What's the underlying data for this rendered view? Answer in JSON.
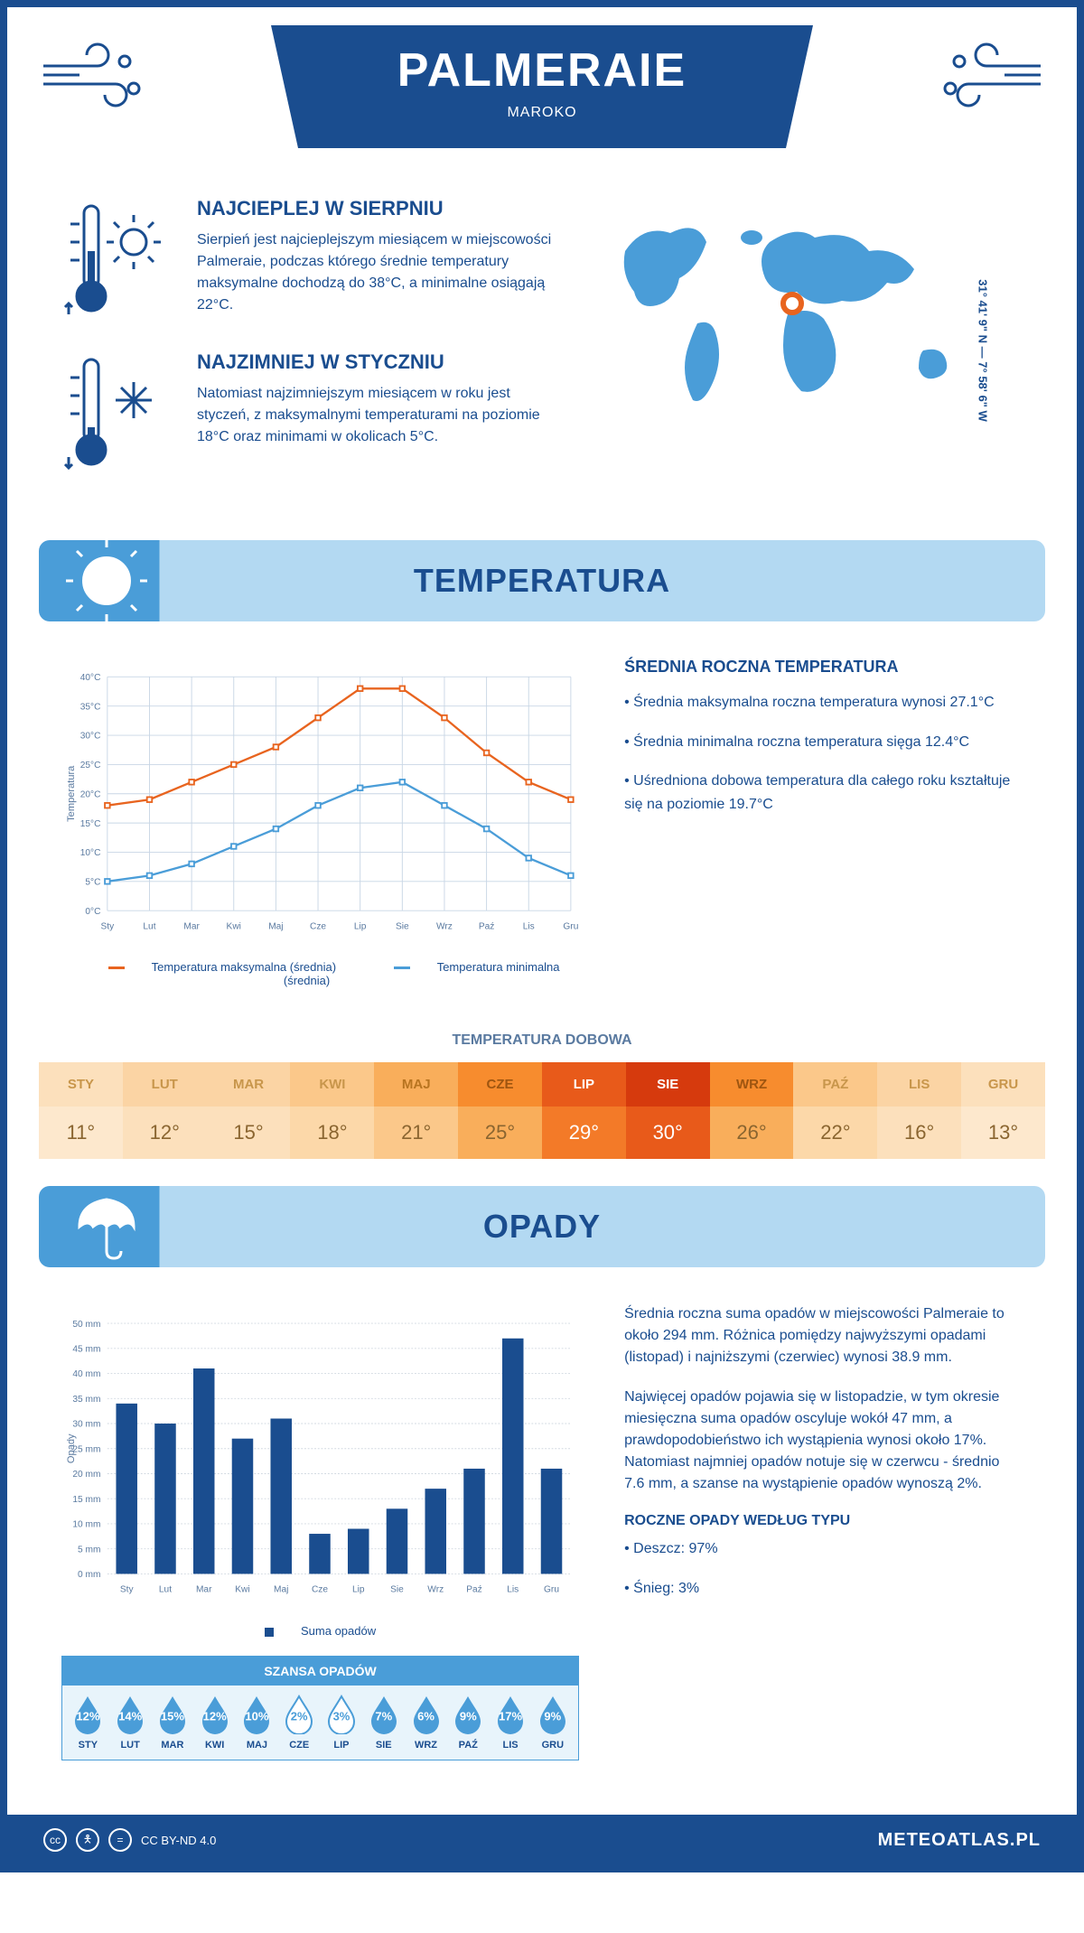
{
  "header": {
    "city": "PALMERAIE",
    "country": "MAROKO",
    "coords": "31° 41' 9\" N — 7° 58' 6\" W"
  },
  "intro": {
    "warm": {
      "title": "NAJCIEPLEJ W SIERPNIU",
      "text": "Sierpień jest najcieplejszym miesiącem w miejscowości Palmeraie, podczas którego średnie temperatury maksymalne dochodzą do 38°C, a minimalne osiągają 22°C."
    },
    "cold": {
      "title": "NAJZIMNIEJ W STYCZNIU",
      "text": "Natomiast najzimniejszym miesiącem w roku jest styczeń, z maksymalnymi temperaturami na poziomie 18°C oraz minimami w okolicach 5°C."
    }
  },
  "temp_section": {
    "title": "TEMPERATURA",
    "info_title": "ŚREDNIA ROCZNA TEMPERATURA",
    "bullets": [
      "• Średnia maksymalna roczna temperatura wynosi 27.1°C",
      "• Średnia minimalna roczna temperatura sięga 12.4°C",
      "• Uśredniona dobowa temperatura dla całego roku kształtuje się na poziomie 19.7°C"
    ],
    "daily_title": "TEMPERATURA DOBOWA",
    "chart": {
      "months": [
        "Sty",
        "Lut",
        "Mar",
        "Kwi",
        "Maj",
        "Cze",
        "Lip",
        "Sie",
        "Wrz",
        "Paź",
        "Lis",
        "Gru"
      ],
      "max_values": [
        18,
        19,
        22,
        25,
        28,
        33,
        38,
        38,
        33,
        27,
        22,
        19
      ],
      "min_values": [
        5,
        6,
        8,
        11,
        14,
        18,
        21,
        22,
        18,
        14,
        9,
        6
      ],
      "max_color": "#e8641f",
      "min_color": "#4a9dd8",
      "grid_color": "#c8d6e5",
      "ylim": [
        0,
        40
      ],
      "ytick_step": 5,
      "ylabel": "Temperatura",
      "legend_max": "Temperatura maksymalna (średnia)",
      "legend_min": "Temperatura minimalna (średnia)"
    },
    "daily": {
      "months": [
        "STY",
        "LUT",
        "MAR",
        "KWI",
        "MAJ",
        "CZE",
        "LIP",
        "SIE",
        "WRZ",
        "PAŹ",
        "LIS",
        "GRU"
      ],
      "values": [
        "11°",
        "12°",
        "15°",
        "18°",
        "21°",
        "25°",
        "29°",
        "30°",
        "26°",
        "22°",
        "16°",
        "13°"
      ],
      "bg_top": [
        "#fce0bc",
        "#fbd4a4",
        "#fbd4a4",
        "#fbc88a",
        "#f9ae5b",
        "#f78c2e",
        "#e85a1a",
        "#d63a0d",
        "#f78c2e",
        "#fbc88a",
        "#fbd4a4",
        "#fce0bc"
      ],
      "bg_bot": [
        "#fde8cd",
        "#fce0bc",
        "#fce0bc",
        "#fcd8a9",
        "#fbc88a",
        "#f9ae5b",
        "#f37a28",
        "#e85a1a",
        "#f9ae5b",
        "#fcd8a9",
        "#fce0bc",
        "#fde8cd"
      ],
      "text_top": [
        "#c8964b",
        "#c8964b",
        "#c8964b",
        "#c8964b",
        "#b87420",
        "#9e5510",
        "#ffffff",
        "#ffffff",
        "#9e5510",
        "#c8964b",
        "#c8964b",
        "#c8964b"
      ],
      "text_bot": [
        "#8a6530",
        "#8a6530",
        "#8a6530",
        "#8a6530",
        "#8a6530",
        "#8a6530",
        "#ffffff",
        "#ffffff",
        "#8a6530",
        "#8a6530",
        "#8a6530",
        "#8a6530"
      ]
    }
  },
  "precip_section": {
    "title": "OPADY",
    "para1": "Średnia roczna suma opadów w miejscowości Palmeraie to około 294 mm. Różnica pomiędzy najwyższymi opadami (listopad) i najniższymi (czerwiec) wynosi 38.9 mm.",
    "para2": "Najwięcej opadów pojawia się w listopadzie, w tym okresie miesięczna suma opadów oscyluje wokół 47 mm, a prawdopodobieństwo ich wystąpienia wynosi około 17%. Natomiast najmniej opadów notuje się w czerwcu - średnio 7.6 mm, a szanse na wystąpienie opadów wynoszą 2%.",
    "type_title": "ROCZNE OPADY WEDŁUG TYPU",
    "types": [
      "• Deszcz: 97%",
      "• Śnieg: 3%"
    ],
    "chart": {
      "months": [
        "Sty",
        "Lut",
        "Mar",
        "Kwi",
        "Maj",
        "Cze",
        "Lip",
        "Sie",
        "Wrz",
        "Paź",
        "Lis",
        "Gru"
      ],
      "values": [
        34,
        30,
        41,
        27,
        31,
        8,
        9,
        13,
        17,
        21,
        47,
        21
      ],
      "bar_color": "#1a4d8f",
      "grid_color": "#d0d8e0",
      "ylim": [
        0,
        50
      ],
      "ytick_step": 5,
      "ylabel": "Opady",
      "legend": "Suma opadów"
    },
    "chance": {
      "title": "SZANSA OPADÓW",
      "months": [
        "STY",
        "LUT",
        "MAR",
        "KWI",
        "MAJ",
        "CZE",
        "LIP",
        "SIE",
        "WRZ",
        "PAŹ",
        "LIS",
        "GRU"
      ],
      "percents": [
        "12%",
        "14%",
        "15%",
        "12%",
        "10%",
        "2%",
        "3%",
        "7%",
        "6%",
        "9%",
        "17%",
        "9%"
      ],
      "fill_color": "#4a9dd8",
      "low_indices": [
        5,
        6
      ]
    }
  },
  "footer": {
    "license": "CC BY-ND 4.0",
    "site": "METEOATLAS.PL"
  }
}
